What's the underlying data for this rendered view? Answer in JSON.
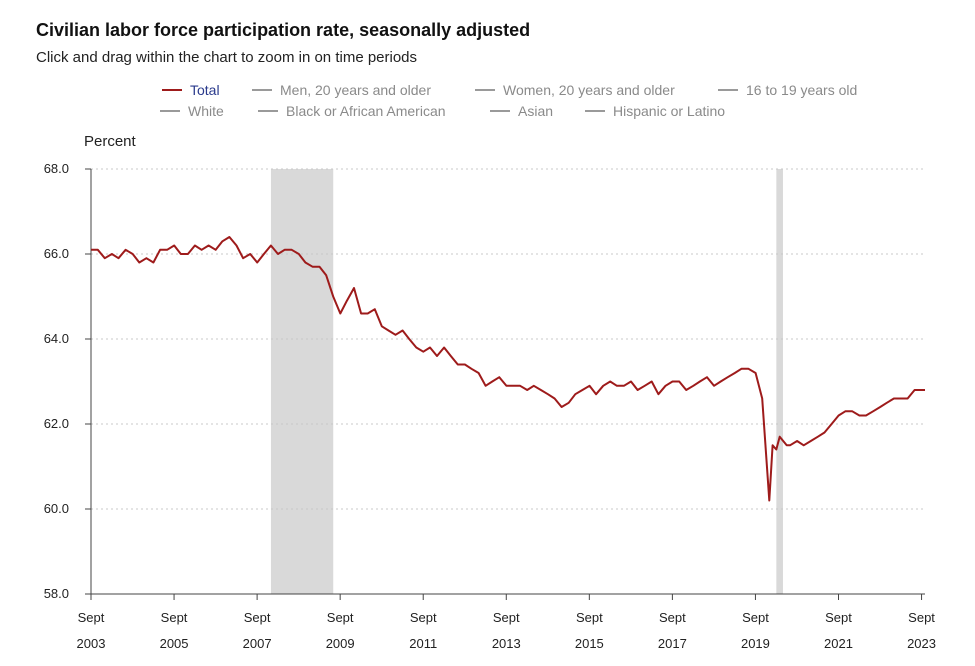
{
  "chart_data": {
    "type": "line",
    "title": "Civilian labor force participation rate, seasonally adjusted",
    "subtitle": "Click and drag within the chart to zoom in on time periods",
    "ylabel": "Percent",
    "xlabel": "",
    "ylim": [
      58.0,
      68.0
    ],
    "xlim": [
      2003.667,
      2023.75
    ],
    "y_ticks": [
      {
        "value": 58.0,
        "label": "58.0"
      },
      {
        "value": 60.0,
        "label": "60.0"
      },
      {
        "value": 62.0,
        "label": "62.0"
      },
      {
        "value": 64.0,
        "label": "64.0"
      },
      {
        "value": 66.0,
        "label": "66.0"
      },
      {
        "value": 68.0,
        "label": "68.0"
      }
    ],
    "x_ticks": [
      {
        "value": 2003.667,
        "month": "Sept",
        "year": "2003"
      },
      {
        "value": 2005.667,
        "month": "Sept",
        "year": "2005"
      },
      {
        "value": 2007.667,
        "month": "Sept",
        "year": "2007"
      },
      {
        "value": 2009.667,
        "month": "Sept",
        "year": "2009"
      },
      {
        "value": 2011.667,
        "month": "Sept",
        "year": "2011"
      },
      {
        "value": 2013.667,
        "month": "Sept",
        "year": "2013"
      },
      {
        "value": 2015.667,
        "month": "Sept",
        "year": "2015"
      },
      {
        "value": 2017.667,
        "month": "Sept",
        "year": "2017"
      },
      {
        "value": 2019.667,
        "month": "Sept",
        "year": "2019"
      },
      {
        "value": 2021.667,
        "month": "Sept",
        "year": "2021"
      },
      {
        "value": 2023.667,
        "month": "Sept",
        "year": "2023"
      }
    ],
    "grid": true,
    "recessions": [
      {
        "start": 2008.0,
        "end": 2009.5
      },
      {
        "start": 2020.17,
        "end": 2020.33
      }
    ],
    "legend": [
      {
        "name": "Total",
        "active": true
      },
      {
        "name": "Men, 20 years and older",
        "active": false
      },
      {
        "name": "Women, 20 years and older",
        "active": false
      },
      {
        "name": "16 to 19 years old",
        "active": false
      },
      {
        "name": "White",
        "active": false
      },
      {
        "name": "Black or African American",
        "active": false
      },
      {
        "name": "Asian",
        "active": false
      },
      {
        "name": "Hispanic or Latino",
        "active": false
      }
    ],
    "colors": {
      "total": "#9e1b1b",
      "inactive": "#9a9a9a",
      "recession": "#d9d9d9",
      "grid": "#c8c8c8"
    },
    "series": [
      {
        "name": "Total",
        "x": [
          2003.67,
          2003.83,
          2004.0,
          2004.17,
          2004.33,
          2004.5,
          2004.67,
          2004.83,
          2005.0,
          2005.17,
          2005.33,
          2005.5,
          2005.67,
          2005.83,
          2006.0,
          2006.17,
          2006.33,
          2006.5,
          2006.67,
          2006.83,
          2007.0,
          2007.17,
          2007.33,
          2007.5,
          2007.67,
          2007.83,
          2008.0,
          2008.17,
          2008.33,
          2008.5,
          2008.67,
          2008.83,
          2009.0,
          2009.17,
          2009.33,
          2009.5,
          2009.67,
          2009.83,
          2010.0,
          2010.17,
          2010.33,
          2010.5,
          2010.67,
          2010.83,
          2011.0,
          2011.17,
          2011.33,
          2011.5,
          2011.67,
          2011.83,
          2012.0,
          2012.17,
          2012.33,
          2012.5,
          2012.67,
          2012.83,
          2013.0,
          2013.17,
          2013.33,
          2013.5,
          2013.67,
          2013.83,
          2014.0,
          2014.17,
          2014.33,
          2014.5,
          2014.67,
          2014.83,
          2015.0,
          2015.17,
          2015.33,
          2015.5,
          2015.67,
          2015.83,
          2016.0,
          2016.17,
          2016.33,
          2016.5,
          2016.67,
          2016.83,
          2017.0,
          2017.17,
          2017.33,
          2017.5,
          2017.67,
          2017.83,
          2018.0,
          2018.17,
          2018.33,
          2018.5,
          2018.67,
          2018.83,
          2019.0,
          2019.17,
          2019.33,
          2019.5,
          2019.67,
          2019.83,
          2020.0,
          2020.08,
          2020.17,
          2020.25,
          2020.42,
          2020.5,
          2020.67,
          2020.83,
          2021.0,
          2021.17,
          2021.33,
          2021.5,
          2021.67,
          2021.83,
          2022.0,
          2022.17,
          2022.33,
          2022.5,
          2022.67,
          2022.83,
          2023.0,
          2023.17,
          2023.33,
          2023.5,
          2023.67,
          2023.75
        ],
        "values": [
          66.1,
          66.1,
          65.9,
          66.0,
          65.9,
          66.1,
          66.0,
          65.8,
          65.9,
          65.8,
          66.1,
          66.1,
          66.2,
          66.0,
          66.0,
          66.2,
          66.1,
          66.2,
          66.1,
          66.3,
          66.4,
          66.2,
          65.9,
          66.0,
          65.8,
          66.0,
          66.2,
          66.0,
          66.1,
          66.1,
          66.0,
          65.8,
          65.7,
          65.7,
          65.5,
          65.0,
          64.6,
          64.9,
          65.2,
          64.6,
          64.6,
          64.7,
          64.3,
          64.2,
          64.1,
          64.2,
          64.0,
          63.8,
          63.7,
          63.8,
          63.6,
          63.8,
          63.6,
          63.4,
          63.4,
          63.3,
          63.2,
          62.9,
          63.0,
          63.1,
          62.9,
          62.9,
          62.9,
          62.8,
          62.9,
          62.8,
          62.7,
          62.6,
          62.4,
          62.5,
          62.7,
          62.8,
          62.9,
          62.7,
          62.9,
          63.0,
          62.9,
          62.9,
          63.0,
          62.8,
          62.9,
          63.0,
          62.7,
          62.9,
          63.0,
          63.0,
          62.8,
          62.9,
          63.0,
          63.1,
          62.9,
          63.0,
          63.1,
          63.2,
          63.3,
          63.3,
          63.2,
          62.6,
          60.2,
          61.5,
          61.4,
          61.7,
          61.5,
          61.5,
          61.6,
          61.5,
          61.6,
          61.7,
          61.8,
          62.0,
          62.2,
          62.3,
          62.3,
          62.2,
          62.2,
          62.3,
          62.4,
          62.5,
          62.6,
          62.6,
          62.6,
          62.8,
          62.8,
          62.8
        ]
      }
    ]
  }
}
